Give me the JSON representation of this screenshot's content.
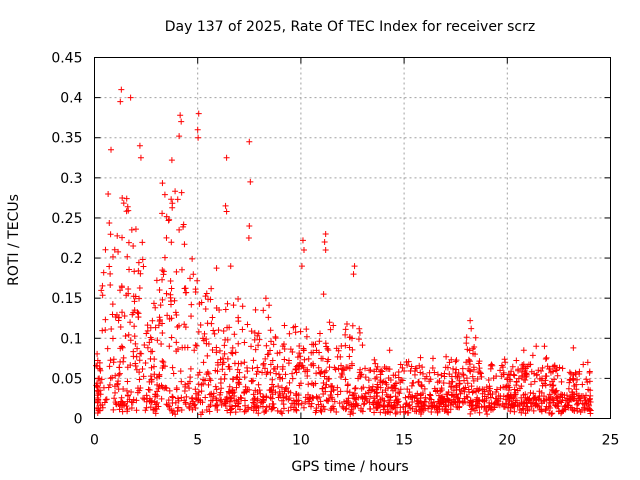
{
  "chart_data": {
    "type": "scatter",
    "title": "Day 137 of 2025, Rate Of TEC Index for receiver scrz",
    "xlabel": "GPS time / hours",
    "ylabel": "ROTI / TECUs",
    "xlim": [
      0,
      25
    ],
    "ylim": [
      0,
      0.45
    ],
    "xticks": [
      "0",
      "5",
      "10",
      "15",
      "20",
      "25"
    ],
    "yticks": [
      "0",
      "0.05",
      "0.1",
      "0.15",
      "0.2",
      "0.25",
      "0.3",
      "0.35",
      "0.4",
      "0.45"
    ],
    "grid": true,
    "marker": "+",
    "color": "#ff0000",
    "series": [
      {
        "points": [
          [
            1.3,
            0.41
          ],
          [
            1.25,
            0.395
          ],
          [
            1.75,
            0.4
          ],
          [
            0.8,
            0.335
          ],
          [
            2.2,
            0.34
          ],
          [
            2.25,
            0.325
          ],
          [
            4.15,
            0.378
          ],
          [
            4.2,
            0.37
          ],
          [
            5.05,
            0.38
          ],
          [
            5.0,
            0.36
          ],
          [
            5.02,
            0.35
          ],
          [
            4.1,
            0.352
          ],
          [
            3.75,
            0.322
          ],
          [
            6.4,
            0.325
          ],
          [
            7.5,
            0.345
          ],
          [
            7.55,
            0.295
          ],
          [
            7.5,
            0.24
          ],
          [
            7.48,
            0.225
          ],
          [
            6.35,
            0.265
          ],
          [
            6.4,
            0.258
          ],
          [
            10.1,
            0.222
          ],
          [
            10.15,
            0.21
          ],
          [
            10.05,
            0.19
          ],
          [
            11.2,
            0.23
          ],
          [
            11.15,
            0.22
          ],
          [
            11.2,
            0.21
          ],
          [
            11.1,
            0.155
          ],
          [
            12.6,
            0.19
          ],
          [
            12.55,
            0.18
          ],
          [
            6.6,
            0.19
          ],
          [
            18.2,
            0.122
          ],
          [
            18.25,
            0.112
          ],
          [
            21.4,
            0.09
          ],
          [
            21.8,
            0.09
          ],
          [
            20.8,
            0.085
          ],
          [
            23.2,
            0.088
          ],
          [
            23.9,
            0.07
          ],
          [
            14.3,
            0.085
          ],
          [
            16.4,
            0.075
          ],
          [
            17.2,
            0.07
          ]
        ]
      }
    ]
  }
}
